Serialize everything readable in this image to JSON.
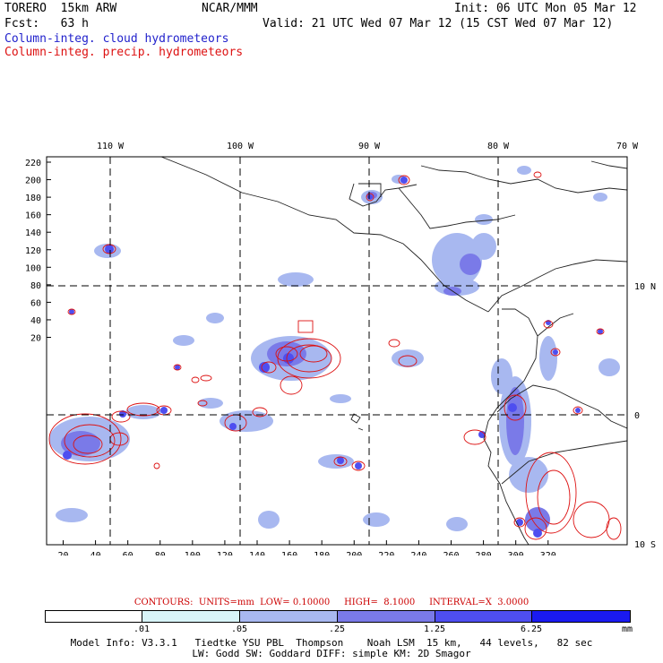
{
  "header": {
    "model": "TORERO  15km ARW",
    "org": "NCAR/MMM",
    "init": "Init: 06 UTC Mon 05 Mar 12",
    "fcst": "Fcst:   63 h",
    "valid": "Valid: 21 UTC Wed 07 Mar 12 (15 CST Wed 07 Mar 12)",
    "field1": "Column-integ. cloud hydrometeors",
    "field2": "Column-integ. precip. hydrometeors"
  },
  "colors": {
    "field1": "#2222cc",
    "field2": "#dd1111",
    "contour": "#dd1111"
  },
  "map": {
    "lon_labels": [
      "110 W",
      "100 W",
      "90 W",
      "80 W",
      "70 W"
    ],
    "lat_labels": [
      "10 N",
      "0",
      "10 S"
    ],
    "x_ticks": [
      "20",
      "40",
      "60",
      "80",
      "100",
      "120",
      "140",
      "160",
      "180",
      "200",
      "220",
      "240",
      "260",
      "280",
      "300",
      "320"
    ],
    "y_ticks": [
      "220",
      "200",
      "180",
      "160",
      "140",
      "120",
      "100",
      "80",
      "60",
      "40",
      "20"
    ]
  },
  "contours_line": "CONTOURS:  UNITS=mm  LOW= 0.10000     HIGH=  8.1000     INTERVAL=X  3.0000",
  "colorbar": {
    "labels": [
      ".01",
      ".05",
      ".25",
      "1.25",
      "6.25"
    ],
    "unit": "mm",
    "colors": [
      "#ffffff",
      "#d8f4f8",
      "#a8b8f0",
      "#7a7ae8",
      "#4e4ef0",
      "#1a1af0"
    ]
  },
  "footer": {
    "line1": "Model Info: V3.3.1   Tiedtke YSU PBL  Thompson    Noah LSM  15 km,   44 levels,   82 sec",
    "line2": "LW: Godd SW: Goddard DIFF: simple KM: 2D Smagor"
  }
}
